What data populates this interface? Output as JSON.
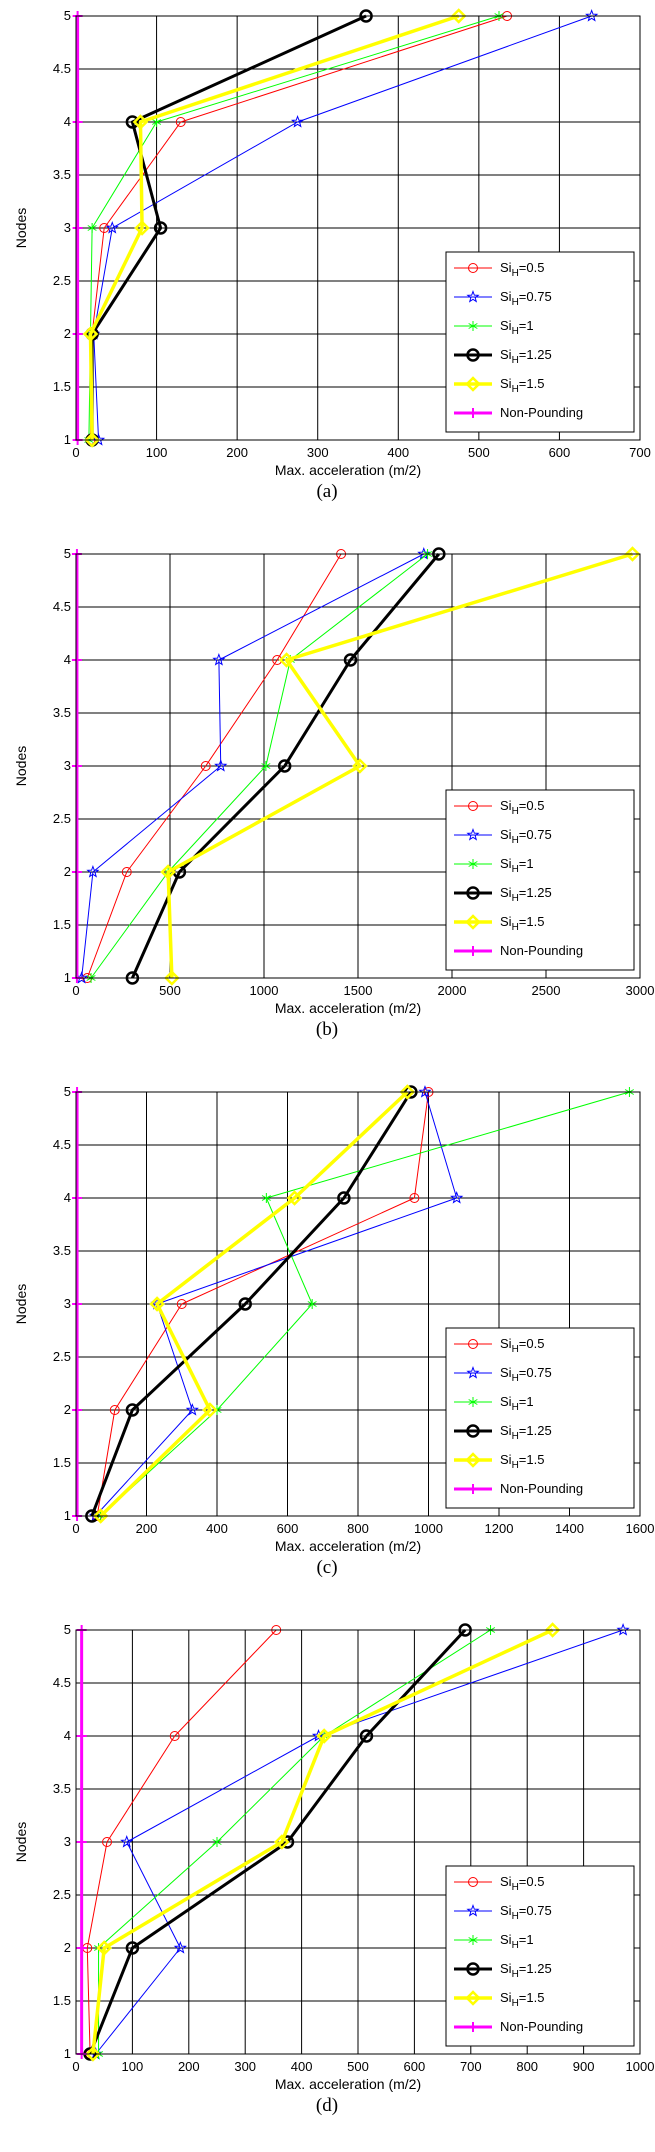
{
  "chart_data": [
    {
      "type": "line",
      "caption": "(a)",
      "xlabel": "Max. acceleration (m/2)",
      "ylabel": "Nodes",
      "xlim": [
        0,
        700
      ],
      "ylim": [
        1,
        5
      ],
      "xticks": [
        0,
        100,
        200,
        300,
        400,
        500,
        600,
        700
      ],
      "yticks": [
        1,
        1.5,
        2,
        2.5,
        3,
        3.5,
        4,
        4.5,
        5
      ],
      "grid": true,
      "legend_position": "bottom-right",
      "y": [
        1,
        2,
        3,
        4,
        5
      ],
      "series": [
        {
          "name": "Si_H=0.5",
          "values": [
            18,
            20,
            35,
            130,
            535
          ]
        },
        {
          "name": "Si_H=0.75",
          "values": [
            28,
            22,
            45,
            275,
            640
          ]
        },
        {
          "name": "Si_H=1",
          "values": [
            16,
            18,
            20,
            100,
            525
          ]
        },
        {
          "name": "Si_H=1.25",
          "values": [
            20,
            20,
            105,
            70,
            360
          ]
        },
        {
          "name": "Si_H=1.5",
          "values": [
            20,
            18,
            82,
            80,
            475
          ]
        },
        {
          "name": "Non-Pounding",
          "values": [
            2,
            2,
            2,
            2,
            2
          ]
        }
      ]
    },
    {
      "type": "line",
      "caption": "(b)",
      "xlabel": "Max. acceleration (m/2)",
      "ylabel": "Nodes",
      "xlim": [
        0,
        3000
      ],
      "ylim": [
        1,
        5
      ],
      "xticks": [
        0,
        500,
        1000,
        1500,
        2000,
        2500,
        3000
      ],
      "yticks": [
        1,
        1.5,
        2,
        2.5,
        3,
        3.5,
        4,
        4.5,
        5
      ],
      "grid": true,
      "legend_position": "bottom-right",
      "y": [
        1,
        2,
        3,
        4,
        5
      ],
      "series": [
        {
          "name": "Si_H=0.5",
          "values": [
            60,
            270,
            690,
            1070,
            1410
          ]
        },
        {
          "name": "Si_H=0.75",
          "values": [
            30,
            90,
            770,
            760,
            1850
          ]
        },
        {
          "name": "Si_H=1",
          "values": [
            80,
            490,
            1010,
            1140,
            1870
          ]
        },
        {
          "name": "Si_H=1.25",
          "values": [
            300,
            550,
            1110,
            1460,
            1930
          ]
        },
        {
          "name": "Si_H=1.5",
          "values": [
            510,
            490,
            1510,
            1120,
            2960
          ]
        },
        {
          "name": "Non-Pounding",
          "values": [
            5,
            5,
            5,
            5,
            5
          ]
        }
      ]
    },
    {
      "type": "line",
      "caption": "(c)",
      "xlabel": "Max. acceleration (m/2)",
      "ylabel": "Nodes",
      "xlim": [
        0,
        1600
      ],
      "ylim": [
        1,
        5
      ],
      "xticks": [
        0,
        200,
        400,
        600,
        800,
        1000,
        1200,
        1400,
        1600
      ],
      "yticks": [
        1,
        1.5,
        2,
        2.5,
        3,
        3.5,
        4,
        4.5,
        5
      ],
      "grid": true,
      "legend_position": "bottom-right",
      "y": [
        1,
        2,
        3,
        4,
        5
      ],
      "series": [
        {
          "name": "Si_H=0.5",
          "values": [
            60,
            110,
            300,
            960,
            1000
          ]
        },
        {
          "name": "Si_H=0.75",
          "values": [
            55,
            330,
            230,
            1080,
            990
          ]
        },
        {
          "name": "Si_H=1",
          "values": [
            70,
            400,
            670,
            540,
            1570
          ]
        },
        {
          "name": "Si_H=1.25",
          "values": [
            45,
            160,
            480,
            760,
            950
          ]
        },
        {
          "name": "Si_H=1.5",
          "values": [
            70,
            380,
            230,
            620,
            940
          ]
        },
        {
          "name": "Non-Pounding",
          "values": [
            3,
            3,
            3,
            3,
            3
          ]
        }
      ]
    },
    {
      "type": "line",
      "caption": "(d)",
      "xlabel": "Max. acceleration (m/2)",
      "ylabel": "Nodes",
      "xlim": [
        0,
        1000
      ],
      "ylim": [
        1,
        5
      ],
      "xticks": [
        0,
        100,
        200,
        300,
        400,
        500,
        600,
        700,
        800,
        900,
        1000
      ],
      "yticks": [
        1,
        1.5,
        2,
        2.5,
        3,
        3.5,
        4,
        4.5,
        5
      ],
      "grid": true,
      "legend_position": "bottom-right",
      "y": [
        1,
        2,
        3,
        4,
        5
      ],
      "series": [
        {
          "name": "Si_H=0.5",
          "values": [
            25,
            20,
            55,
            175,
            355
          ]
        },
        {
          "name": "Si_H=0.75",
          "values": [
            35,
            185,
            90,
            430,
            970
          ]
        },
        {
          "name": "Si_H=1",
          "values": [
            40,
            40,
            250,
            440,
            735
          ]
        },
        {
          "name": "Si_H=1.25",
          "values": [
            25,
            100,
            375,
            515,
            690
          ]
        },
        {
          "name": "Si_H=1.5",
          "values": [
            30,
            50,
            365,
            440,
            845
          ]
        },
        {
          "name": "Non-Pounding",
          "values": [
            10,
            10,
            10,
            10,
            10
          ]
        }
      ]
    }
  ],
  "series_styles": [
    {
      "color": "#ff0000",
      "width": 1,
      "marker": "circle"
    },
    {
      "color": "#0000ff",
      "width": 1,
      "marker": "star"
    },
    {
      "color": "#00ff00",
      "width": 1,
      "marker": "asterisk"
    },
    {
      "color": "#000000",
      "width": 3,
      "marker": "circle-bold"
    },
    {
      "color": "#ffff00",
      "width": 3.5,
      "marker": "diamond"
    },
    {
      "color": "#ff00ff",
      "width": 3,
      "marker": "plus"
    }
  ]
}
